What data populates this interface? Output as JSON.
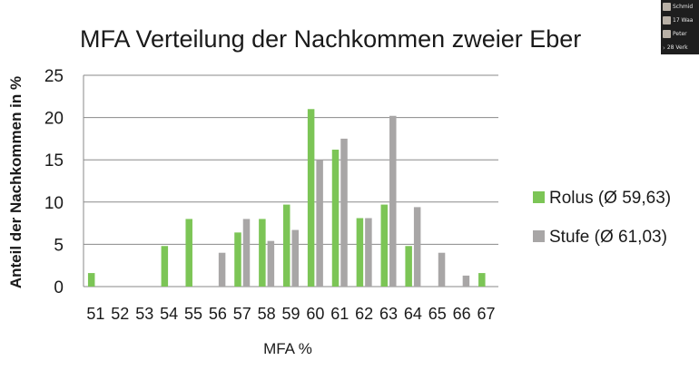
{
  "chart_data": {
    "type": "bar",
    "title": "MFA Verteilung der Nachkommen zweier Eber",
    "xlabel": "MFA %",
    "ylabel": "Anteil der Nachkommen in %",
    "ylim": [
      0,
      25
    ],
    "yticks": [
      "0",
      "5",
      "10",
      "15",
      "20",
      "25"
    ],
    "grid": true,
    "legend_position": "right",
    "categories": [
      "51",
      "52",
      "53",
      "54",
      "55",
      "56",
      "57",
      "58",
      "59",
      "60",
      "61",
      "62",
      "63",
      "64",
      "65",
      "66",
      "67"
    ],
    "series": [
      {
        "name": "Rolus  (Ø 59,63)",
        "color": "#7cc556",
        "values": [
          1.6,
          0,
          0,
          4.8,
          8.0,
          0,
          6.4,
          8.0,
          9.7,
          21.0,
          16.2,
          8.1,
          9.7,
          4.8,
          0,
          0,
          1.6
        ]
      },
      {
        "name": "Stufe (Ø 61,03)",
        "color": "#a8a6a6",
        "values": [
          0,
          0,
          0,
          0,
          0,
          4.0,
          8.0,
          5.4,
          6.7,
          15.0,
          17.5,
          8.1,
          20.2,
          9.4,
          4.0,
          1.3,
          0
        ]
      }
    ]
  },
  "overlay": {
    "rows": [
      "Schmid",
      "17 Waa",
      "Peter",
      "28 Verk"
    ]
  }
}
